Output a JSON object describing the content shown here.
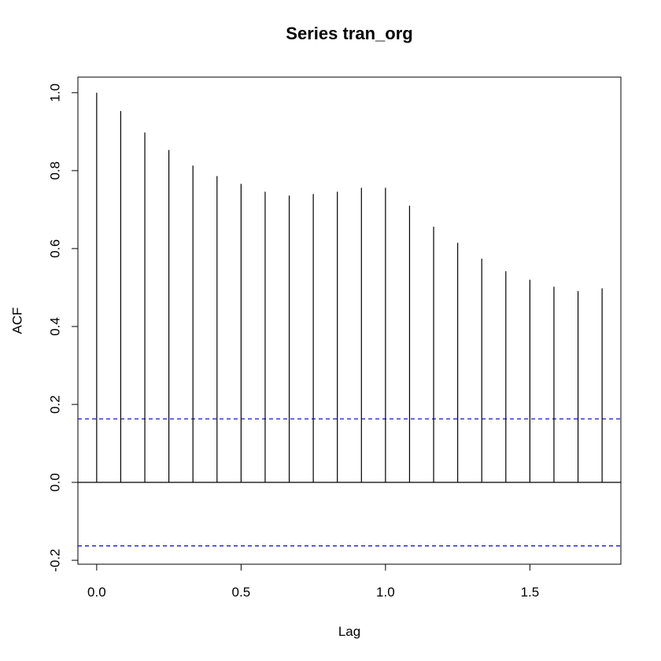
{
  "chart_data": {
    "type": "bar",
    "title": "Series  tran_org",
    "xlabel": "Lag",
    "ylabel": "ACF",
    "xlim": [
      -0.065,
      1.815
    ],
    "ylim": [
      -0.21,
      1.04
    ],
    "x_ticks": [
      0.0,
      0.5,
      1.0,
      1.5
    ],
    "x_tick_labels": [
      "0.0",
      "0.5",
      "1.0",
      "1.5"
    ],
    "y_ticks": [
      -0.2,
      0.0,
      0.2,
      0.4,
      0.6,
      0.8,
      1.0
    ],
    "y_tick_labels": [
      "-0.2",
      "0.0",
      "0.2",
      "0.4",
      "0.6",
      "0.8",
      "1.0"
    ],
    "x": [
      0.0,
      0.0833,
      0.1667,
      0.25,
      0.3333,
      0.4167,
      0.5,
      0.5833,
      0.6667,
      0.75,
      0.8333,
      0.9167,
      1.0,
      1.0833,
      1.1667,
      1.25,
      1.3333,
      1.4167,
      1.5,
      1.5833,
      1.6667,
      1.75
    ],
    "values": [
      1.0,
      0.953,
      0.898,
      0.853,
      0.813,
      0.786,
      0.766,
      0.746,
      0.736,
      0.74,
      0.746,
      0.756,
      0.756,
      0.71,
      0.656,
      0.615,
      0.574,
      0.542,
      0.52,
      0.502,
      0.491,
      0.498
    ],
    "confidence_band": [
      0.163,
      -0.163
    ],
    "colors": {
      "bars": "#000000",
      "confidence": "#0000cc",
      "zero_line": "#000000",
      "frame": "#000000"
    },
    "grid": false,
    "legend": "none"
  }
}
